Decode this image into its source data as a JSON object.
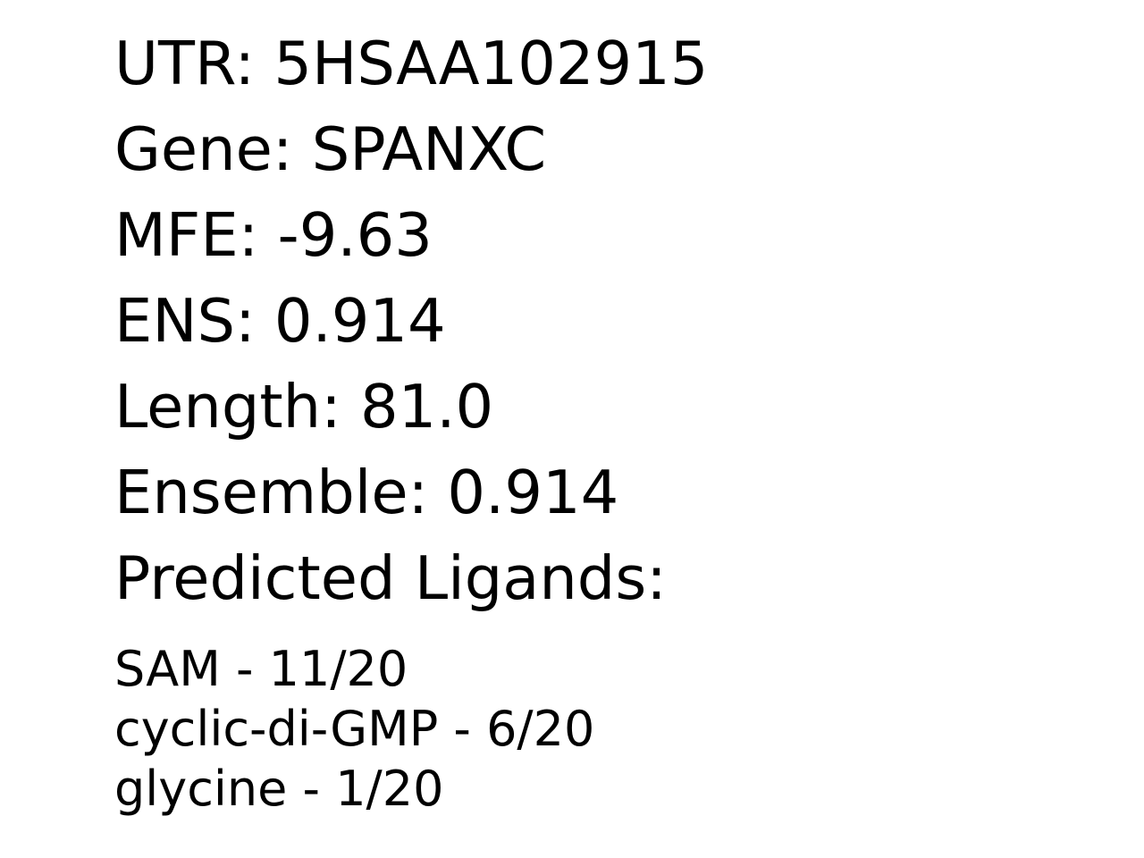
{
  "fields": {
    "utr": "UTR: 5HSAA102915",
    "gene": "Gene: SPANXC",
    "mfe": "MFE: -9.63",
    "ens": "ENS: 0.914",
    "length": "Length: 81.0",
    "ensemble": "Ensemble: 0.914",
    "predicted_ligands_heading": "Predicted Ligands:"
  },
  "ligands": [
    "SAM - 11/20",
    "cyclic-di-GMP - 6/20",
    "glycine - 1/20"
  ]
}
